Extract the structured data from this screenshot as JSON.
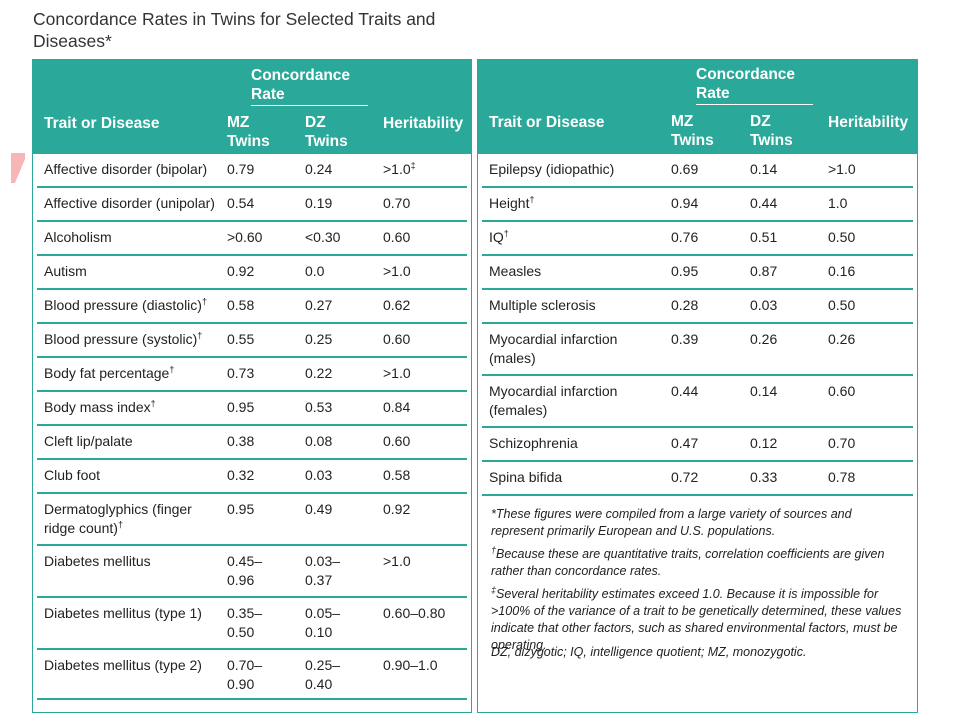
{
  "title": "Concordance Rates in Twins for Selected Traits and Diseases*",
  "headers": {
    "concordance": "Concordance Rate",
    "trait": "Trait or Disease",
    "mz": "MZ Twins",
    "dz": "DZ Twins",
    "heritability": "Heritability"
  },
  "left_rows": [
    {
      "name": "Affective disorder (bipolar)",
      "mz": "0.79",
      "dz": "0.24",
      "h": ">1.0‡"
    },
    {
      "name": "Affective disorder (unipolar)",
      "mz": "0.54",
      "dz": "0.19",
      "h": "0.70"
    },
    {
      "name": "Alcoholism",
      "mz": ">0.60",
      "dz": "<0.30",
      "h": "0.60"
    },
    {
      "name": "Autism",
      "mz": "0.92",
      "dz": "0.0",
      "h": ">1.0"
    },
    {
      "name": "Blood pressure (diastolic)†",
      "mz": "0.58",
      "dz": "0.27",
      "h": "0.62"
    },
    {
      "name": "Blood pressure (systolic)†",
      "mz": "0.55",
      "dz": "0.25",
      "h": "0.60"
    },
    {
      "name": "Body fat percentage†",
      "mz": "0.73",
      "dz": "0.22",
      "h": ">1.0"
    },
    {
      "name": "Body mass index†",
      "mz": "0.95",
      "dz": "0.53",
      "h": "0.84"
    },
    {
      "name": "Cleft lip/palate",
      "mz": "0.38",
      "dz": "0.08",
      "h": "0.60"
    },
    {
      "name": "Club foot",
      "mz": "0.32",
      "dz": "0.03",
      "h": "0.58"
    },
    {
      "name": "Dermatoglyphics (finger ridge count)†",
      "mz": "0.95",
      "dz": "0.49",
      "h": "0.92"
    },
    {
      "name": "Diabetes mellitus",
      "mz": "0.45–0.96",
      "dz": "0.03–0.37",
      "h": ">1.0"
    },
    {
      "name": "Diabetes mellitus (type 1)",
      "mz": "0.35–0.50",
      "dz": "0.05–0.10",
      "h": "0.60–0.80"
    },
    {
      "name": "Diabetes mellitus (type 2)",
      "mz": "0.70–0.90",
      "dz": "0.25–0.40",
      "h": "0.90–1.0"
    }
  ],
  "right_rows": [
    {
      "name": "Epilepsy (idiopathic)",
      "mz": "0.69",
      "dz": "0.14",
      "h": ">1.0"
    },
    {
      "name": "Height†",
      "mz": "0.94",
      "dz": "0.44",
      "h": "1.0"
    },
    {
      "name": "IQ†",
      "mz": "0.76",
      "dz": "0.51",
      "h": "0.50"
    },
    {
      "name": "Measles",
      "mz": "0.95",
      "dz": "0.87",
      "h": "0.16"
    },
    {
      "name": "Multiple sclerosis",
      "mz": "0.28",
      "dz": "0.03",
      "h": "0.50"
    },
    {
      "name": "Myocardial infarction (males)",
      "mz": "0.39",
      "dz": "0.26",
      "h": "0.26"
    },
    {
      "name": "Myocardial infarction (females)",
      "mz": "0.44",
      "dz": "0.14",
      "h": "0.60"
    },
    {
      "name": "Schizophrenia",
      "mz": "0.47",
      "dz": "0.12",
      "h": "0.70"
    },
    {
      "name": "Spina bifida",
      "mz": "0.72",
      "dz": "0.33",
      "h": "0.78"
    }
  ],
  "footnotes": [
    "*These figures were compiled from a large variety of sources and represent primarily European and U.S. populations.",
    "†Because these are quantitative traits, correlation coefficients are given rather than concordance rates.",
    "‡Several heritability estimates exceed 1.0. Because it is impossible for >100% of the variance of a trait to be genetically determined, these values indicate that other factors, such as shared environmental factors, must be operating.",
    "DZ, dizygotic; IQ, intelligence quotient; MZ, monozygotic."
  ],
  "colors": {
    "accent": "#2aa99a",
    "marker": "#f2a0a0"
  }
}
